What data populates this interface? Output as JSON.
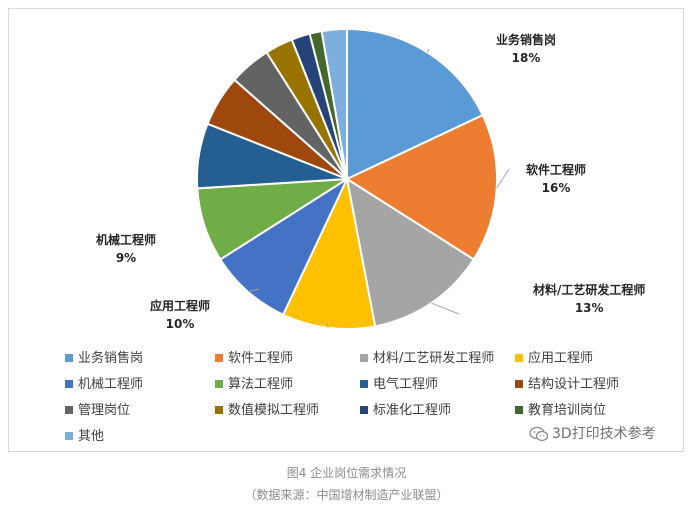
{
  "chart_data": {
    "type": "pie",
    "title": "",
    "series": [
      {
        "name": "业务销售岗",
        "value": 18,
        "label": "18%",
        "color": "#5b9bd5",
        "show_label": true
      },
      {
        "name": "软件工程师",
        "value": 16,
        "label": "16%",
        "color": "#ed7d31",
        "show_label": true
      },
      {
        "name": "材料/工艺研发工程师",
        "value": 13,
        "label": "13%",
        "color": "#a5a5a5",
        "show_label": true
      },
      {
        "name": "应用工程师",
        "value": 10,
        "label": "10%",
        "color": "#ffc000",
        "show_label": true
      },
      {
        "name": "机械工程师",
        "value": 9,
        "label": "9%",
        "color": "#4472c4",
        "show_label": true
      },
      {
        "name": "算法工程师",
        "value": 8,
        "label": "",
        "color": "#70ad47",
        "show_label": false
      },
      {
        "name": "电气工程师",
        "value": 7,
        "label": "",
        "color": "#255e91",
        "show_label": false
      },
      {
        "name": "结构设计工程师",
        "value": 5.5,
        "label": "",
        "color": "#9e480e",
        "show_label": false
      },
      {
        "name": "管理岗位",
        "value": 4.5,
        "label": "",
        "color": "#636363",
        "show_label": false
      },
      {
        "name": "数值模拟工程师",
        "value": 3,
        "label": "",
        "color": "#997300",
        "show_label": false
      },
      {
        "name": "标准化工程师",
        "value": 2,
        "label": "",
        "color": "#264478",
        "show_label": false
      },
      {
        "name": "教育培训岗位",
        "value": 1.3,
        "label": "",
        "color": "#43682b",
        "show_label": false
      },
      {
        "name": "其他",
        "value": 2.7,
        "label": "",
        "color": "#7cafdd",
        "show_label": false
      }
    ],
    "legend_placement": "bottom"
  },
  "watermark": "3D打印技术参考",
  "caption": {
    "line1": "图4  企业岗位需求情况",
    "line2": "（数据来源：中国增材制造产业联盟）"
  }
}
